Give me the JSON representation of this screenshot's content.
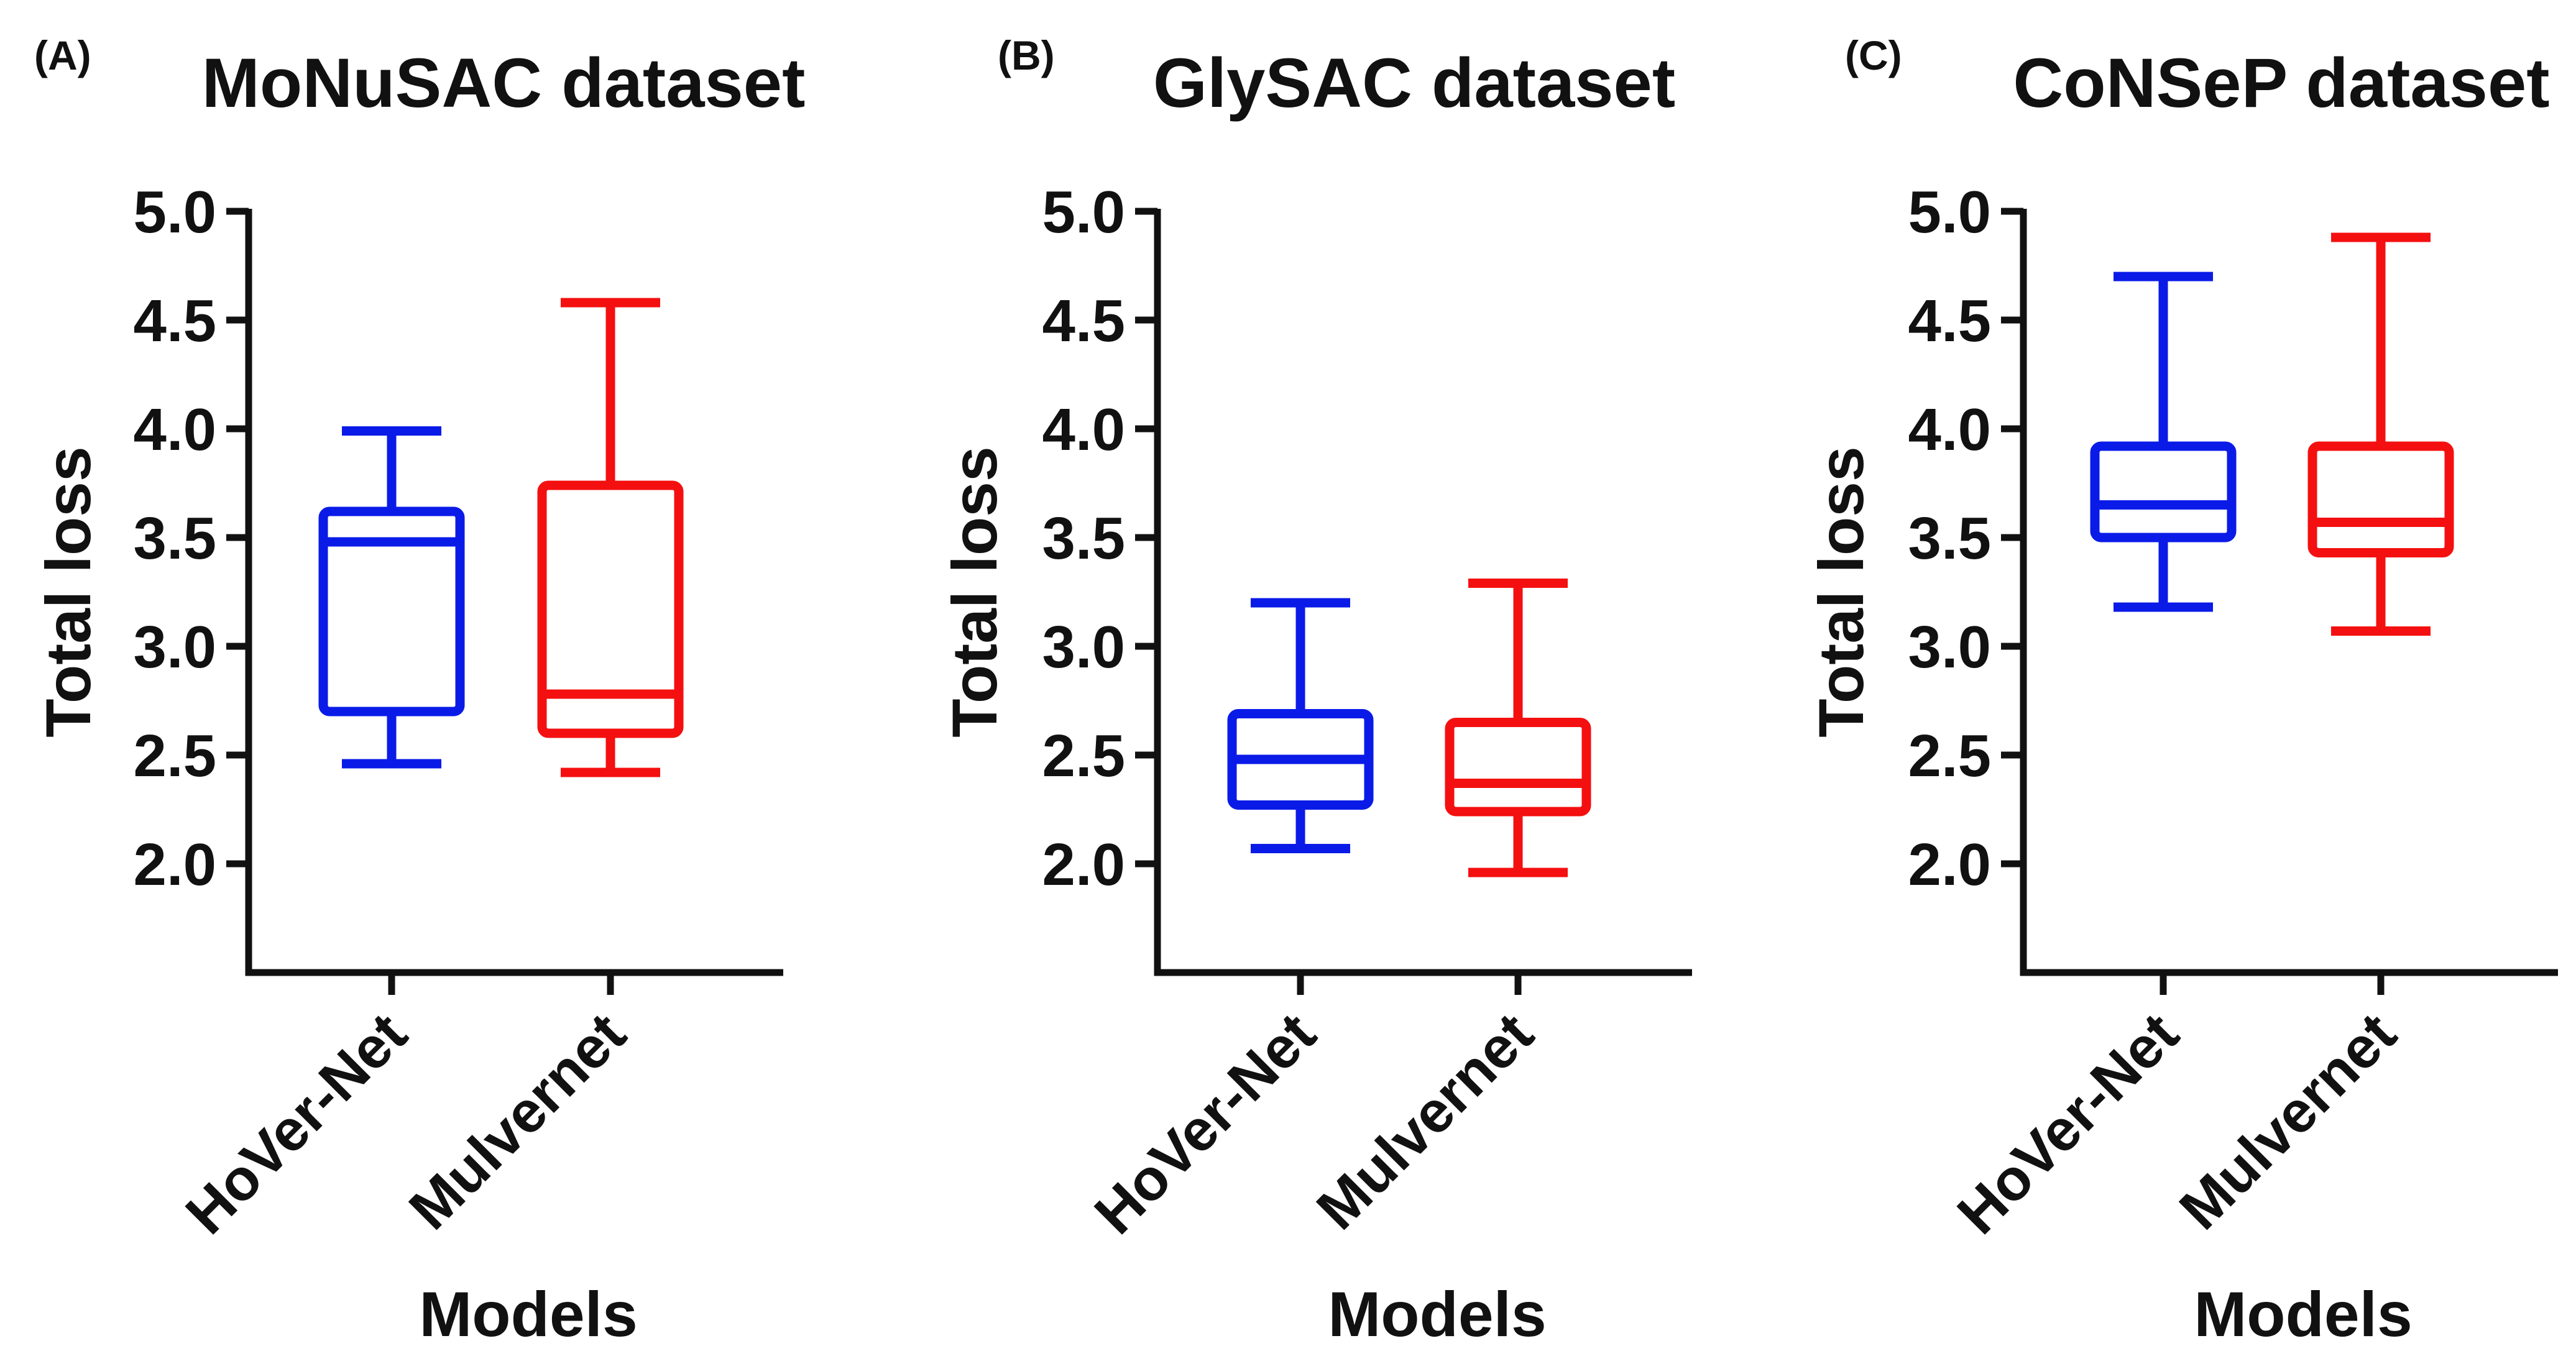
{
  "figure": {
    "panels_count": 3
  },
  "chart_data": [
    {
      "type": "boxplot",
      "panel_label": "(A)",
      "title": "MoNuSAC dataset",
      "xlabel": "Models",
      "ylabel": "Total loss",
      "ylim": [
        1.5,
        5.0
      ],
      "yticks": [
        2.0,
        2.5,
        3.0,
        3.5,
        4.0,
        4.5,
        5.0
      ],
      "ytick_labels": [
        "2.0",
        "2.5",
        "3.0",
        "3.5",
        "4.0",
        "4.5",
        "5.0"
      ],
      "categories": [
        "HoVer-Net",
        "Mulvernet"
      ],
      "series": [
        {
          "name": "HoVer-Net",
          "color": "#0a1be8",
          "min": 2.46,
          "q1": 2.7,
          "median": 3.48,
          "q3": 3.62,
          "max": 3.99
        },
        {
          "name": "Mulvernet",
          "color": "#f41010",
          "min": 2.42,
          "q1": 2.6,
          "median": 2.78,
          "q3": 3.74,
          "max": 4.58
        }
      ]
    },
    {
      "type": "boxplot",
      "panel_label": "(B)",
      "title": "GlySAC dataset",
      "xlabel": "Models",
      "ylabel": "Total loss",
      "ylim": [
        1.5,
        5.0
      ],
      "yticks": [
        2.0,
        2.5,
        3.0,
        3.5,
        4.0,
        4.5,
        5.0
      ],
      "ytick_labels": [
        "2.0",
        "2.5",
        "3.0",
        "3.5",
        "4.0",
        "4.5",
        "5.0"
      ],
      "categories": [
        "HoVer-Net",
        "Mulvernet"
      ],
      "series": [
        {
          "name": "HoVer-Net",
          "color": "#0a1be8",
          "min": 2.07,
          "q1": 2.27,
          "median": 2.48,
          "q3": 2.69,
          "max": 3.2
        },
        {
          "name": "Mulvernet",
          "color": "#f41010",
          "min": 1.96,
          "q1": 2.24,
          "median": 2.37,
          "q3": 2.65,
          "max": 3.29
        }
      ]
    },
    {
      "type": "boxplot",
      "panel_label": "(C)",
      "title": "CoNSeP dataset",
      "xlabel": "Models",
      "ylabel": "Total loss",
      "ylim": [
        1.5,
        5.0
      ],
      "yticks": [
        2.0,
        2.5,
        3.0,
        3.5,
        4.0,
        4.5,
        5.0
      ],
      "ytick_labels": [
        "2.0",
        "2.5",
        "3.0",
        "3.5",
        "4.0",
        "4.5",
        "5.0"
      ],
      "categories": [
        "HoVer-Net",
        "Mulvernet"
      ],
      "series": [
        {
          "name": "HoVer-Net",
          "color": "#0a1be8",
          "min": 3.18,
          "q1": 3.5,
          "median": 3.65,
          "q3": 3.92,
          "max": 4.7
        },
        {
          "name": "Mulvernet",
          "color": "#f41010",
          "min": 3.07,
          "q1": 3.43,
          "median": 3.57,
          "q3": 3.92,
          "max": 4.88
        }
      ]
    }
  ]
}
